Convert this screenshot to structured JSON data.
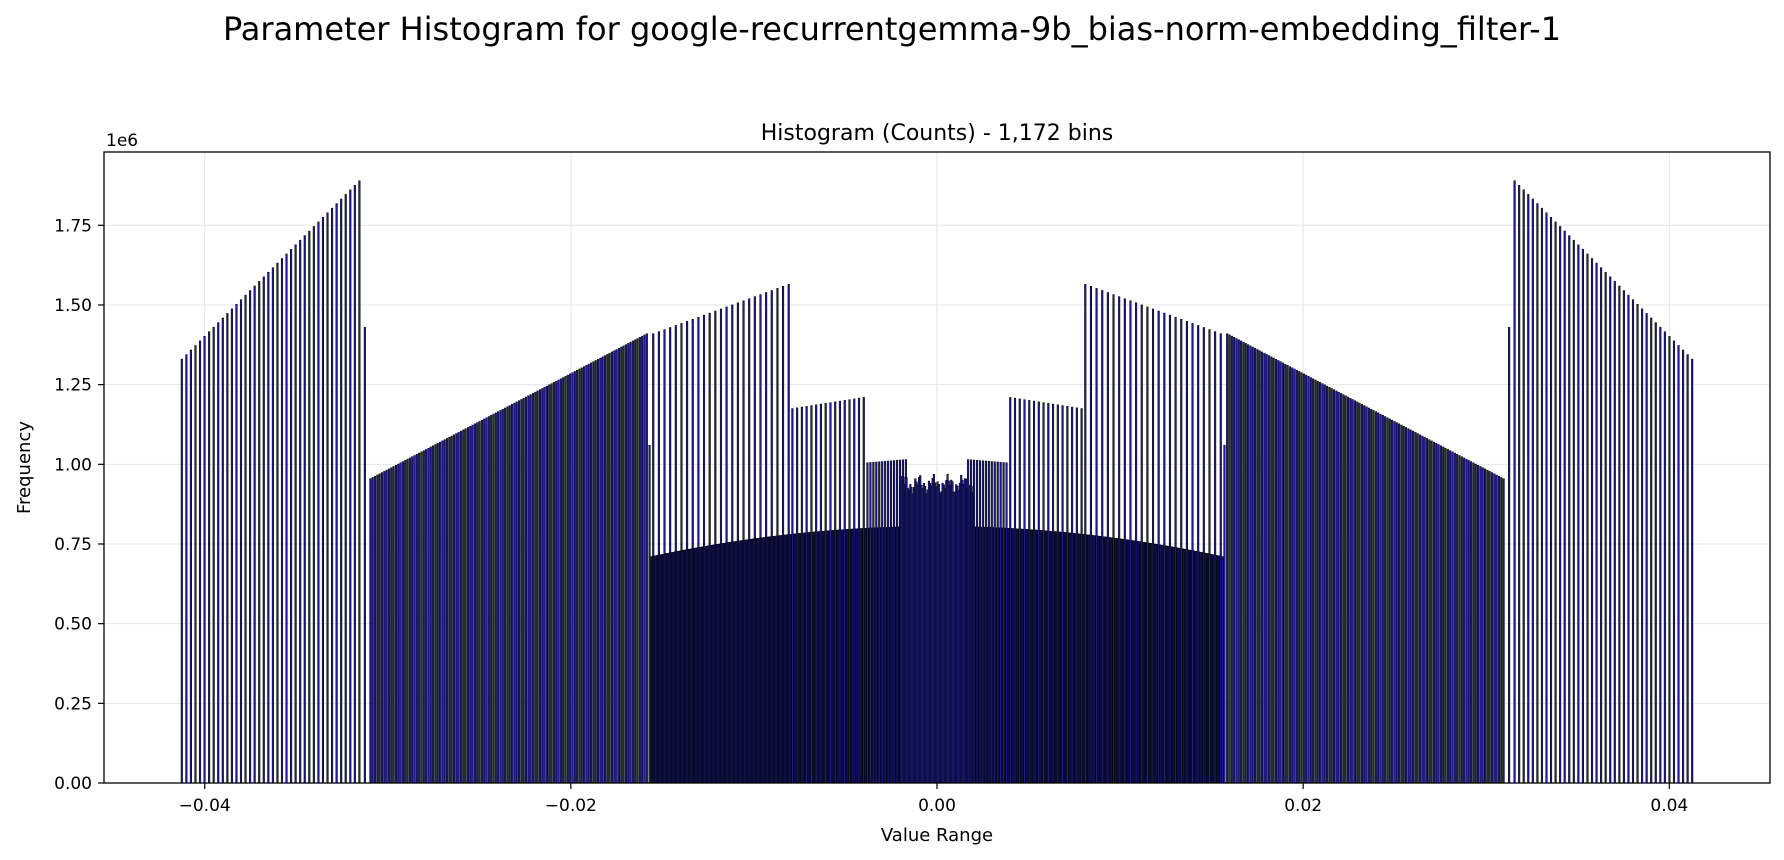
{
  "figure_title": "Parameter Histogram for google-recurrentgemma-9b_bias-norm-embedding_filter-1",
  "colors": {
    "bar_fill": "#1f1f8f",
    "bar_edge": "#000000",
    "grid": "#e6e6e6"
  },
  "chart_data": {
    "type": "bar",
    "title": "Histogram (Counts) - 1,172 bins",
    "xlabel": "Value Range",
    "ylabel": "Frequency",
    "y_offset_text": "1e6",
    "xlim": [
      -0.0455,
      0.0455
    ],
    "ylim": [
      0,
      1980000
    ],
    "x_ticks": [
      -0.04,
      -0.02,
      0.0,
      0.02,
      0.04
    ],
    "x_tick_labels": [
      "−0.04",
      "−0.02",
      "0.00",
      "0.02",
      "0.04"
    ],
    "y_ticks": [
      0,
      250000,
      500000,
      750000,
      1000000,
      1250000,
      1500000,
      1750000
    ],
    "y_tick_labels": [
      "0.00",
      "0.25",
      "0.50",
      "0.75",
      "1.00",
      "1.25",
      "1.50",
      "1.75"
    ],
    "grid": true,
    "bin_count": 1172,
    "segments": [
      {
        "x_start": -0.04125,
        "x_end": -0.03155,
        "bins": 40,
        "y_start": 1330000,
        "y_end": 1890000
      },
      {
        "x_start": -0.03125,
        "x_end": -0.03125,
        "bins": 1,
        "y_start": 1430000,
        "y_end": 1430000
      },
      {
        "x_start": -0.03095,
        "x_end": -0.01585,
        "bins": 120,
        "y_start": 955000,
        "y_end": 1410000
      },
      {
        "x_start": -0.0157,
        "x_end": -0.0157,
        "bins": 1,
        "y_start": 1060000,
        "y_end": 1060000
      },
      {
        "x_start": -0.0155,
        "x_end": -0.0081,
        "bins": 25,
        "y_start": 1410000,
        "y_end": 1565000
      },
      {
        "x_start": -0.0156,
        "x_end": 0.0156,
        "bins": 700,
        "y_start": 710000,
        "y_end": 805000,
        "shape": "dome"
      },
      {
        "x_start": -0.0079,
        "x_end": -0.004,
        "bins": 16,
        "y_start": 1175000,
        "y_end": 1210000
      },
      {
        "x_start": -0.0038,
        "x_end": -0.0017,
        "bins": 14,
        "y_start": 1005000,
        "y_end": 1015000
      },
      {
        "x_start": -0.002,
        "x_end": 0.002,
        "bins": 60,
        "y_start": 905000,
        "y_end": 970000,
        "shape": "noisy"
      },
      {
        "x_start": 0.0017,
        "x_end": 0.0038,
        "bins": 14,
        "y_start": 1015000,
        "y_end": 1005000
      },
      {
        "x_start": 0.004,
        "x_end": 0.0079,
        "bins": 16,
        "y_start": 1210000,
        "y_end": 1175000
      },
      {
        "x_start": 0.0081,
        "x_end": 0.0155,
        "bins": 25,
        "y_start": 1565000,
        "y_end": 1410000
      },
      {
        "x_start": 0.0157,
        "x_end": 0.0157,
        "bins": 1,
        "y_start": 1060000,
        "y_end": 1060000
      },
      {
        "x_start": 0.01585,
        "x_end": 0.03095,
        "bins": 120,
        "y_start": 1410000,
        "y_end": 955000
      },
      {
        "x_start": 0.03125,
        "x_end": 0.03125,
        "bins": 1,
        "y_start": 1430000,
        "y_end": 1430000
      },
      {
        "x_start": 0.03155,
        "x_end": 0.04125,
        "bins": 40,
        "y_start": 1890000,
        "y_end": 1330000
      }
    ]
  }
}
